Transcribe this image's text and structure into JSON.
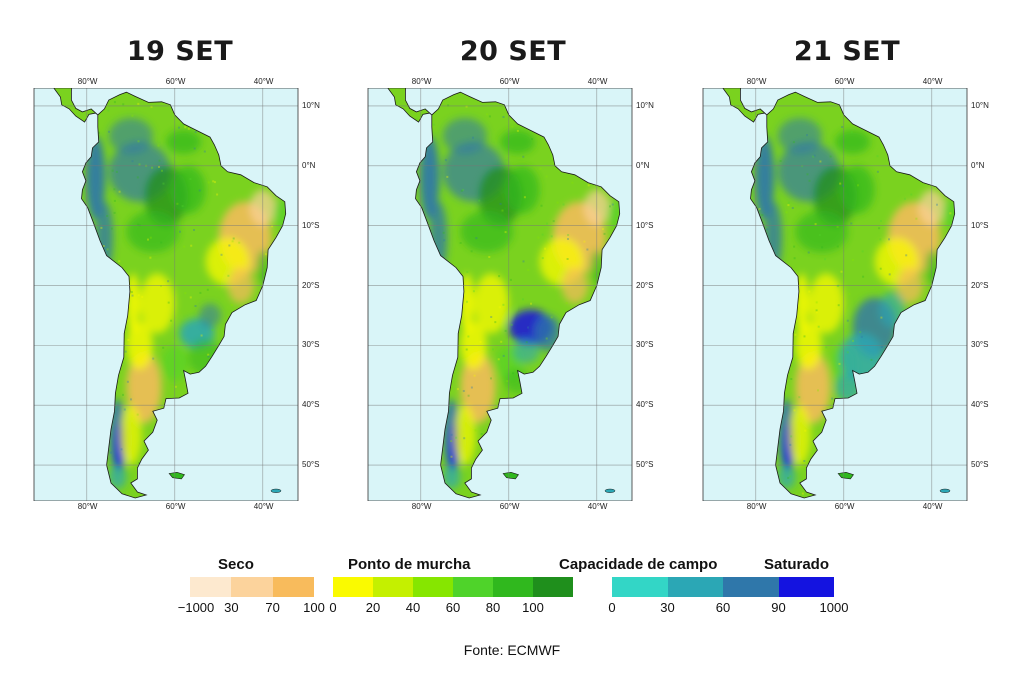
{
  "maps": [
    {
      "title": "19 SET",
      "key": "d19"
    },
    {
      "title": "20 SET",
      "key": "d20"
    },
    {
      "title": "21 SET",
      "key": "d21"
    }
  ],
  "axes": {
    "lon_labels": [
      "80°W",
      "60°W",
      "40°W"
    ],
    "lat_labels": [
      "10°N",
      "0°N",
      "10°S",
      "20°S",
      "30°S",
      "40°S",
      "50°S"
    ]
  },
  "legend": {
    "groups": [
      {
        "title": "Seco",
        "colors": [
          "#fde9cf",
          "#fcd39c",
          "#f8bb5c"
        ],
        "ticks": [
          "−1000",
          "30",
          "70",
          "100"
        ]
      },
      {
        "title": "Ponto de murcha",
        "colors": [
          "#fafa00",
          "#c4f000",
          "#86e600",
          "#4fd32a",
          "#30b81e",
          "#1f8f1c"
        ],
        "ticks": [
          "0",
          "20",
          "40",
          "60",
          "80",
          "100"
        ]
      },
      {
        "title": "Capacidade de campo",
        "extra_title": "Saturado",
        "colors": [
          "#33d6c6",
          "#2ba7b5",
          "#2f77aa",
          "#1413e0"
        ],
        "ticks": [
          "0",
          "30",
          "60",
          "90",
          "1000"
        ]
      }
    ]
  },
  "source": "Fonte: ECMWF",
  "colors": {
    "ocean": "#d9f5f8",
    "grid": "#777777",
    "land_base": "#7ad21f"
  }
}
